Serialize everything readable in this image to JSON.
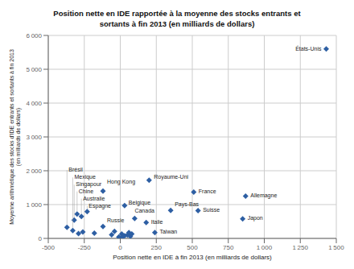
{
  "chart_data": {
    "type": "scatter",
    "title": "Position nette en IDE rapportée à la moyenne des stocks entrants et\nsortants à fin 2013 (en milliards de dollars)",
    "xlabel": "Position nette en IDE à fin 2013 (en milliards de dollars)",
    "ylabel": "Moyenne arithmétique des stocks d'IDE entrants et sortants à fin 2013\n(en milliards de dollars)",
    "x": [
      1430,
      870,
      850,
      200,
      510,
      540,
      350,
      -120,
      30,
      -230,
      -300,
      -270,
      -320,
      -370,
      -330,
      -120,
      100,
      180,
      240,
      -180,
      -60,
      -40,
      10,
      30,
      50,
      60,
      70,
      80,
      -10,
      20,
      -5,
      -290,
      -260
    ],
    "values": [
      5600,
      1250,
      580,
      1720,
      1370,
      820,
      830,
      1400,
      970,
      790,
      720,
      650,
      540,
      330,
      230,
      350,
      590,
      470,
      175,
      155,
      110,
      210,
      130,
      80,
      100,
      170,
      60,
      130,
      40,
      60,
      20,
      140,
      190
    ],
    "labels": [
      "États-Unis",
      "Allemagne",
      "Japon",
      "Royaume-Uni",
      "France",
      "Suisse",
      "Pays-Bas",
      "Hong Kong",
      "Belgique",
      "Espagne",
      "Chine",
      "Australie",
      "Singapour",
      "Brésil",
      "Mexique",
      "Russie",
      "Canada",
      "Italie",
      "Taiwan",
      null,
      null,
      null,
      null,
      null,
      null,
      null,
      null,
      null,
      null,
      null,
      null,
      null,
      null
    ],
    "color": "#2E5FA3",
    "marker": "diamond",
    "xlim": [
      -500,
      1500
    ],
    "ylim": [
      0,
      6000
    ],
    "xticks": [
      -500,
      -250,
      0,
      250,
      500,
      750,
      {
        "value": 1000,
        "label": "1 000"
      },
      {
        "value": 1250,
        "label": "1 250"
      },
      {
        "value": 1500,
        "label": "1 500"
      }
    ],
    "yticks": [
      0,
      {
        "value": 1000,
        "label": "1 000"
      },
      {
        "value": 2000,
        "label": "2 000"
      },
      {
        "value": 3000,
        "label": "3 000"
      },
      {
        "value": 4000,
        "label": "4 000"
      },
      {
        "value": 5000,
        "label": "5 000"
      },
      {
        "value": 6000,
        "label": "6 000"
      }
    ],
    "grid": true
  }
}
